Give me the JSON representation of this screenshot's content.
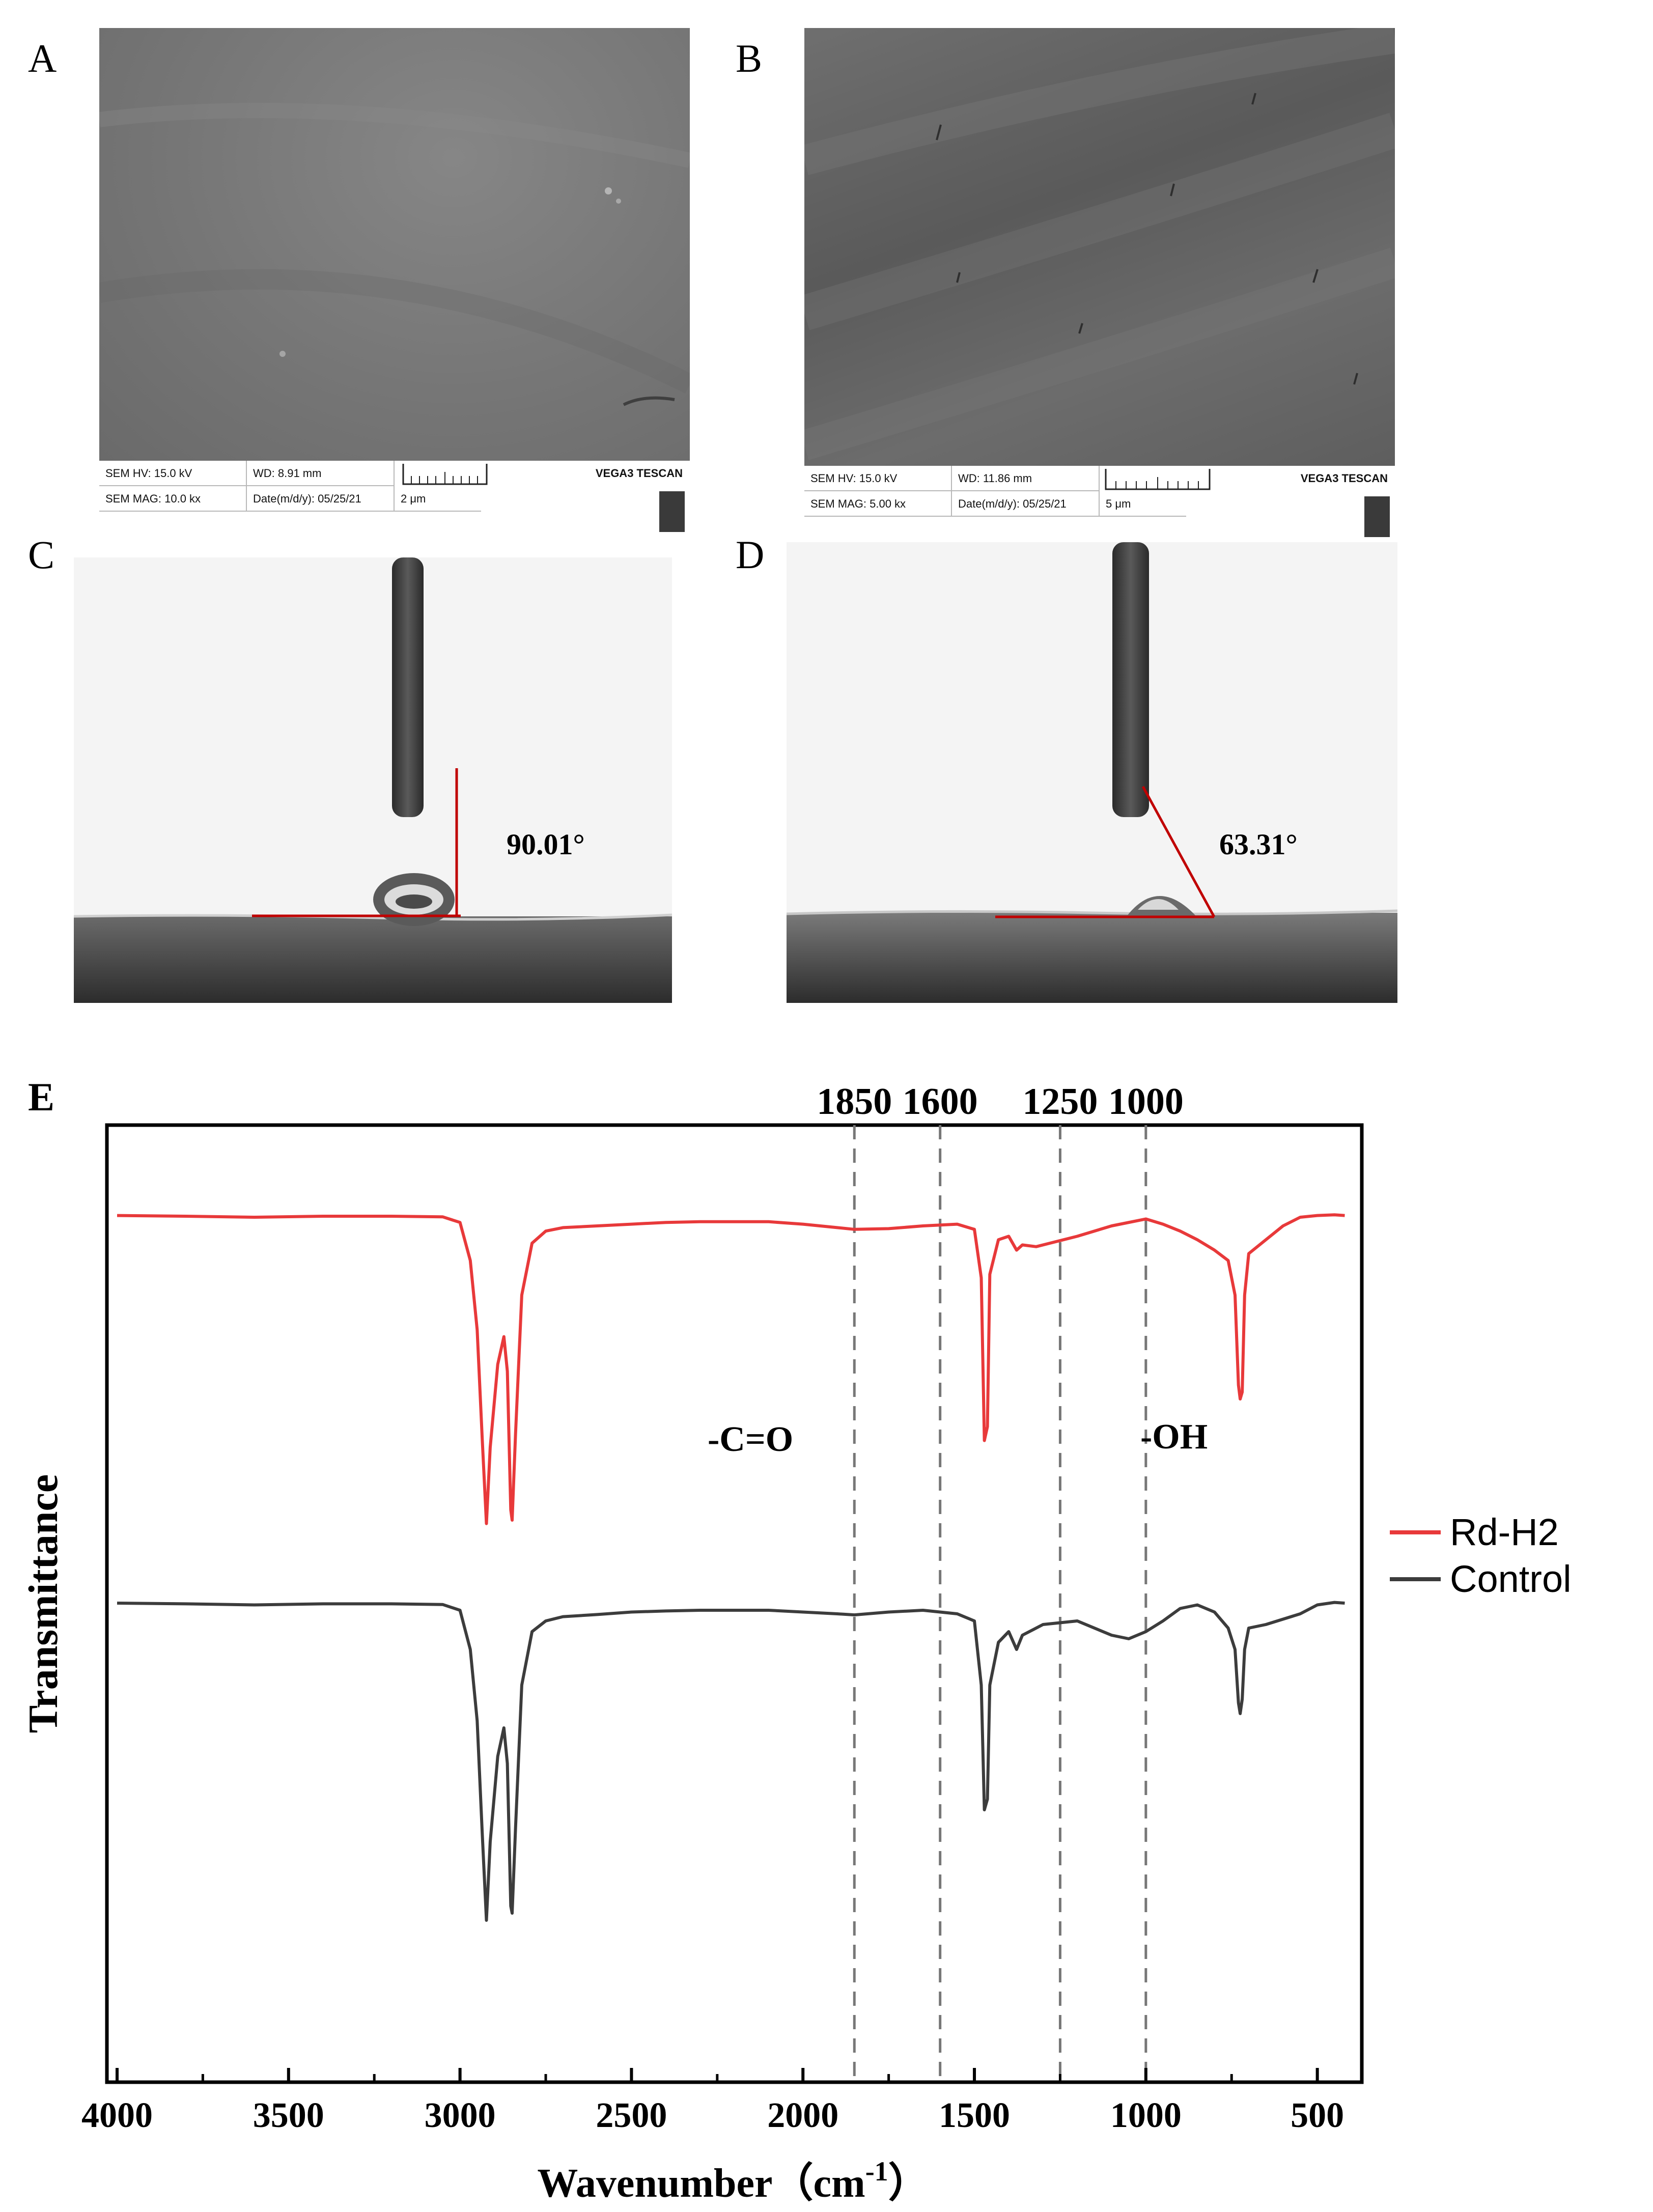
{
  "panels": {
    "A": {
      "letter": "A",
      "sem_bar": {
        "hv": "SEM HV: 15.0 kV",
        "wd": "WD: 8.91 mm",
        "mag": "SEM MAG: 10.0 kx",
        "date": "Date(m/d/y): 05/25/21",
        "scale": "2 μm",
        "brand": "VEGA3 TESCAN"
      }
    },
    "B": {
      "letter": "B",
      "sem_bar": {
        "hv": "SEM HV: 15.0 kV",
        "wd": "WD: 11.86 mm",
        "mag": "SEM MAG: 5.00 kx",
        "date": "Date(m/d/y): 05/25/21",
        "scale": "5 μm",
        "brand": "VEGA3 TESCAN"
      }
    },
    "C": {
      "letter": "C",
      "contact_angle": "90.01°"
    },
    "D": {
      "letter": "D",
      "contact_angle": "63.31°"
    },
    "E": {
      "letter": "E"
    }
  },
  "chart_data": {
    "type": "line",
    "xlabel": "Wavenumber（cm",
    "xlabel_sup": "-1",
    "xlabel_close": "）",
    "ylabel": "Transmittance",
    "xlim": [
      4000,
      400
    ],
    "x_reversed": true,
    "yticks_shown": false,
    "xticks": [
      "4000",
      "3500",
      "3000",
      "2500",
      "2000",
      "1500",
      "1000",
      "500"
    ],
    "reference_lines": [
      {
        "x": 1850,
        "label": "1850"
      },
      {
        "x": 1600,
        "label": "1600"
      },
      {
        "x": 1250,
        "label": "1250"
      },
      {
        "x": 1000,
        "label": "1000"
      }
    ],
    "annotations": [
      {
        "text": "-C=O",
        "x": 1950
      },
      {
        "text": "-OH",
        "x": 830
      }
    ],
    "legend_position": "right",
    "series": [
      {
        "name": "Rd-H2",
        "color": "#e8393a",
        "points": [
          [
            4000,
            0.93
          ],
          [
            3800,
            0.928
          ],
          [
            3600,
            0.925
          ],
          [
            3400,
            0.928
          ],
          [
            3200,
            0.928
          ],
          [
            3050,
            0.926
          ],
          [
            3000,
            0.91
          ],
          [
            2970,
            0.8
          ],
          [
            2950,
            0.6
          ],
          [
            2935,
            0.28
          ],
          [
            2923,
            0.04
          ],
          [
            2912,
            0.26
          ],
          [
            2890,
            0.5
          ],
          [
            2872,
            0.58
          ],
          [
            2862,
            0.48
          ],
          [
            2852,
            0.08
          ],
          [
            2848,
            0.05
          ],
          [
            2838,
            0.3
          ],
          [
            2820,
            0.7
          ],
          [
            2790,
            0.85
          ],
          [
            2750,
            0.885
          ],
          [
            2700,
            0.895
          ],
          [
            2600,
            0.9
          ],
          [
            2500,
            0.905
          ],
          [
            2400,
            0.91
          ],
          [
            2300,
            0.912
          ],
          [
            2100,
            0.912
          ],
          [
            2000,
            0.905
          ],
          [
            1900,
            0.895
          ],
          [
            1850,
            0.89
          ],
          [
            1750,
            0.892
          ],
          [
            1650,
            0.9
          ],
          [
            1550,
            0.905
          ],
          [
            1500,
            0.89
          ],
          [
            1480,
            0.75
          ],
          [
            1471,
            0.28
          ],
          [
            1462,
            0.32
          ],
          [
            1455,
            0.76
          ],
          [
            1430,
            0.86
          ],
          [
            1400,
            0.87
          ],
          [
            1377,
            0.83
          ],
          [
            1360,
            0.845
          ],
          [
            1320,
            0.84
          ],
          [
            1280,
            0.85
          ],
          [
            1200,
            0.87
          ],
          [
            1100,
            0.9
          ],
          [
            1000,
            0.92
          ],
          [
            950,
            0.905
          ],
          [
            900,
            0.885
          ],
          [
            850,
            0.86
          ],
          [
            800,
            0.83
          ],
          [
            760,
            0.8
          ],
          [
            740,
            0.7
          ],
          [
            730,
            0.44
          ],
          [
            725,
            0.4
          ],
          [
            719,
            0.42
          ],
          [
            712,
            0.7
          ],
          [
            700,
            0.82
          ],
          [
            650,
            0.86
          ],
          [
            600,
            0.9
          ],
          [
            550,
            0.925
          ],
          [
            500,
            0.93
          ],
          [
            450,
            0.932
          ],
          [
            420,
            0.93
          ]
        ]
      },
      {
        "name": "Control",
        "color": "#3c3c3c",
        "points": [
          [
            4000,
            0.93
          ],
          [
            3800,
            0.928
          ],
          [
            3600,
            0.925
          ],
          [
            3400,
            0.928
          ],
          [
            3200,
            0.928
          ],
          [
            3050,
            0.926
          ],
          [
            3000,
            0.91
          ],
          [
            2970,
            0.8
          ],
          [
            2950,
            0.6
          ],
          [
            2935,
            0.28
          ],
          [
            2923,
            0.04
          ],
          [
            2912,
            0.26
          ],
          [
            2890,
            0.5
          ],
          [
            2872,
            0.58
          ],
          [
            2862,
            0.48
          ],
          [
            2852,
            0.08
          ],
          [
            2848,
            0.06
          ],
          [
            2838,
            0.3
          ],
          [
            2820,
            0.7
          ],
          [
            2790,
            0.85
          ],
          [
            2750,
            0.88
          ],
          [
            2700,
            0.892
          ],
          [
            2600,
            0.898
          ],
          [
            2500,
            0.905
          ],
          [
            2400,
            0.908
          ],
          [
            2300,
            0.91
          ],
          [
            2100,
            0.91
          ],
          [
            2000,
            0.905
          ],
          [
            1900,
            0.9
          ],
          [
            1850,
            0.897
          ],
          [
            1750,
            0.905
          ],
          [
            1650,
            0.91
          ],
          [
            1550,
            0.9
          ],
          [
            1500,
            0.88
          ],
          [
            1480,
            0.7
          ],
          [
            1471,
            0.35
          ],
          [
            1462,
            0.38
          ],
          [
            1455,
            0.7
          ],
          [
            1430,
            0.82
          ],
          [
            1400,
            0.85
          ],
          [
            1377,
            0.8
          ],
          [
            1360,
            0.84
          ],
          [
            1300,
            0.87
          ],
          [
            1200,
            0.88
          ],
          [
            1100,
            0.84
          ],
          [
            1050,
            0.83
          ],
          [
            1000,
            0.85
          ],
          [
            950,
            0.88
          ],
          [
            900,
            0.915
          ],
          [
            850,
            0.925
          ],
          [
            800,
            0.905
          ],
          [
            760,
            0.86
          ],
          [
            740,
            0.8
          ],
          [
            730,
            0.65
          ],
          [
            725,
            0.62
          ],
          [
            719,
            0.66
          ],
          [
            712,
            0.8
          ],
          [
            700,
            0.86
          ],
          [
            650,
            0.87
          ],
          [
            600,
            0.885
          ],
          [
            550,
            0.9
          ],
          [
            500,
            0.925
          ],
          [
            450,
            0.932
          ],
          [
            420,
            0.93
          ]
        ]
      }
    ]
  }
}
